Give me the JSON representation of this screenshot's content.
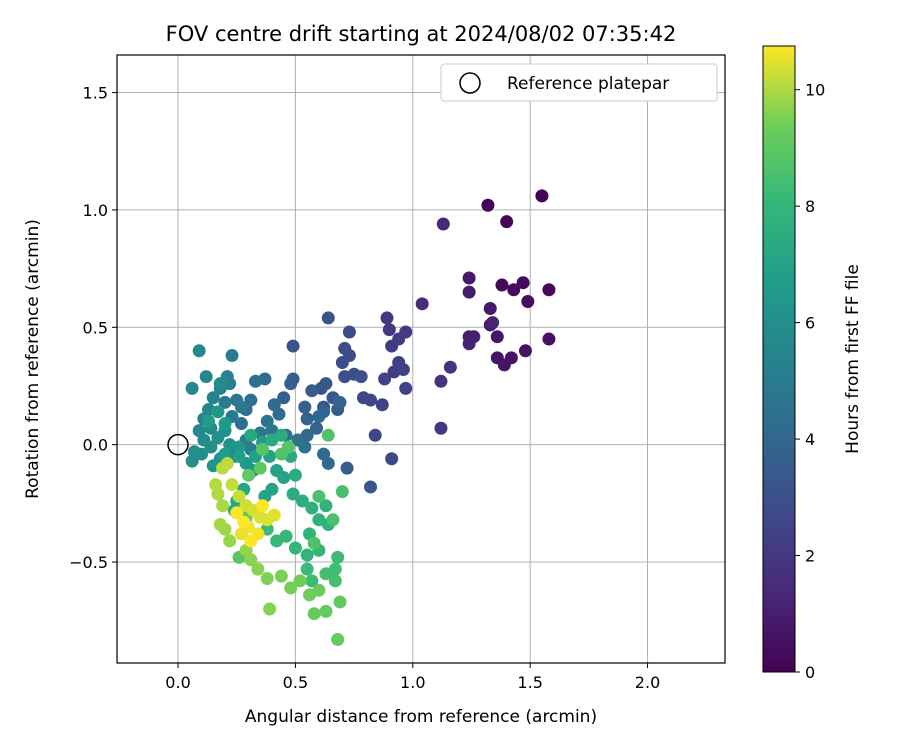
{
  "chart_data": {
    "type": "scatter",
    "title": "FOV centre drift starting at 2024/08/02 07:35:42",
    "xlabel": "Angular distance from reference (arcmin)",
    "ylabel": "Rotation from reference (arcmin)",
    "xlim": [
      -0.26,
      2.33
    ],
    "ylim": [
      -0.93,
      1.66
    ],
    "xticks": [
      0.0,
      0.5,
      1.0,
      1.5,
      2.0
    ],
    "xtick_labels": [
      "0.0",
      "0.5",
      "1.0",
      "1.5",
      "2.0"
    ],
    "yticks": [
      -0.5,
      0.0,
      0.5,
      1.0,
      1.5
    ],
    "ytick_labels": [
      "−0.5",
      "0.0",
      "0.5",
      "1.0",
      "1.5"
    ],
    "grid": true,
    "legend": {
      "position": "top-right",
      "entries": [
        "Reference platepar"
      ]
    },
    "reference_point": {
      "x": 0.0,
      "y": 0.0,
      "label": "Reference platepar"
    },
    "colorbar": {
      "label": "Hours from first FF file",
      "range": [
        0,
        10.75
      ],
      "ticks": [
        0,
        2,
        4,
        6,
        8,
        10
      ],
      "tick_labels": [
        "0",
        "2",
        "4",
        "6",
        "8",
        "10"
      ],
      "colormap": "viridis"
    },
    "points": [
      [
        1.55,
        1.06,
        0.05
      ],
      [
        1.32,
        1.02,
        0.1
      ],
      [
        1.4,
        0.95,
        0.15
      ],
      [
        1.58,
        0.66,
        0.2
      ],
      [
        1.38,
        0.68,
        0.25
      ],
      [
        1.47,
        0.69,
        0.3
      ],
      [
        1.43,
        0.66,
        0.35
      ],
      [
        1.49,
        0.61,
        0.4
      ],
      [
        1.58,
        0.45,
        0.5
      ],
      [
        1.48,
        0.4,
        0.55
      ],
      [
        1.42,
        0.37,
        0.6
      ],
      [
        1.36,
        0.37,
        0.65
      ],
      [
        1.39,
        0.34,
        0.7
      ],
      [
        1.36,
        0.46,
        0.75
      ],
      [
        1.33,
        0.58,
        0.8
      ],
      [
        1.33,
        0.51,
        0.85
      ],
      [
        1.24,
        0.71,
        0.9
      ],
      [
        1.24,
        0.65,
        1.0
      ],
      [
        1.24,
        0.46,
        1.05
      ],
      [
        1.26,
        0.46,
        1.1
      ],
      [
        1.24,
        0.43,
        1.15
      ],
      [
        1.34,
        0.52,
        1.2
      ],
      [
        1.13,
        0.94,
        1.4
      ],
      [
        1.04,
        0.6,
        1.6
      ],
      [
        1.16,
        0.33,
        1.7
      ],
      [
        1.12,
        0.27,
        1.8
      ],
      [
        1.12,
        0.07,
        1.9
      ],
      [
        0.89,
        0.54,
        2.0
      ],
      [
        0.9,
        0.49,
        2.05
      ],
      [
        0.97,
        0.48,
        2.1
      ],
      [
        0.91,
        0.42,
        2.15
      ],
      [
        0.94,
        0.45,
        2.2
      ],
      [
        0.92,
        0.31,
        2.25
      ],
      [
        0.94,
        0.35,
        2.3
      ],
      [
        0.96,
        0.32,
        2.35
      ],
      [
        0.88,
        0.28,
        2.4
      ],
      [
        0.97,
        0.24,
        2.45
      ],
      [
        0.87,
        0.17,
        2.5
      ],
      [
        0.82,
        0.19,
        2.55
      ],
      [
        0.79,
        0.2,
        2.6
      ],
      [
        0.84,
        0.04,
        2.65
      ],
      [
        0.91,
        -0.06,
        2.7
      ],
      [
        0.73,
        0.48,
        2.75
      ],
      [
        0.71,
        0.41,
        2.8
      ],
      [
        0.73,
        0.38,
        2.85
      ],
      [
        0.7,
        0.35,
        2.9
      ],
      [
        0.71,
        0.29,
        2.95
      ],
      [
        0.75,
        0.3,
        3.0
      ],
      [
        0.78,
        0.29,
        3.05
      ],
      [
        0.64,
        0.54,
        3.1
      ],
      [
        0.49,
        0.42,
        3.15
      ],
      [
        0.82,
        -0.18,
        3.2
      ],
      [
        0.61,
        0.24,
        3.25
      ],
      [
        0.63,
        0.26,
        3.3
      ],
      [
        0.66,
        0.2,
        3.35
      ],
      [
        0.62,
        0.16,
        3.4
      ],
      [
        0.57,
        0.23,
        3.45
      ],
      [
        0.68,
        0.15,
        3.5
      ],
      [
        0.72,
        -0.1,
        3.55
      ],
      [
        0.49,
        0.28,
        3.6
      ],
      [
        0.48,
        0.26,
        3.65
      ],
      [
        0.45,
        0.2,
        3.7
      ],
      [
        0.54,
        0.16,
        3.75
      ],
      [
        0.55,
        0.11,
        3.8
      ],
      [
        0.59,
        0.07,
        3.85
      ],
      [
        0.62,
        0.14,
        3.9
      ],
      [
        0.69,
        0.18,
        3.95
      ],
      [
        0.6,
        0.12,
        4.0
      ],
      [
        0.55,
        0.04,
        4.05
      ],
      [
        0.62,
        -0.04,
        4.1
      ],
      [
        0.64,
        -0.08,
        4.15
      ],
      [
        0.41,
        0.17,
        4.2
      ],
      [
        0.43,
        0.13,
        4.25
      ],
      [
        0.37,
        0.28,
        4.3
      ],
      [
        0.33,
        0.27,
        4.35
      ],
      [
        0.31,
        0.19,
        4.4
      ],
      [
        0.29,
        0.15,
        4.45
      ],
      [
        0.27,
        0.09,
        4.5
      ],
      [
        0.46,
        0.04,
        4.55
      ],
      [
        0.51,
        0.02,
        4.6
      ],
      [
        0.54,
        -0.01,
        4.65
      ],
      [
        0.38,
        0.1,
        4.7
      ],
      [
        0.4,
        0.06,
        4.75
      ],
      [
        0.35,
        0.05,
        4.8
      ],
      [
        0.25,
        0.19,
        4.85
      ],
      [
        0.27,
        0.16,
        4.9
      ],
      [
        0.2,
        0.18,
        4.95
      ],
      [
        0.23,
        0.12,
        5.0
      ],
      [
        0.29,
        0.02,
        5.05
      ],
      [
        0.31,
        -0.02,
        5.1
      ],
      [
        0.24,
        -0.05,
        5.15
      ],
      [
        0.23,
        0.38,
        5.2
      ],
      [
        0.22,
        0.26,
        5.25
      ],
      [
        0.21,
        0.29,
        5.3
      ],
      [
        0.18,
        0.24,
        5.35
      ],
      [
        0.15,
        0.2,
        5.4
      ],
      [
        0.13,
        0.15,
        5.45
      ],
      [
        0.11,
        0.11,
        5.5
      ],
      [
        0.09,
        0.06,
        5.55
      ],
      [
        0.06,
        0.24,
        5.6
      ],
      [
        0.09,
        0.4,
        5.65
      ],
      [
        0.12,
        0.29,
        5.7
      ],
      [
        0.18,
        0.26,
        5.75
      ],
      [
        0.14,
        0.07,
        5.8
      ],
      [
        0.11,
        0.02,
        5.85
      ],
      [
        0.07,
        -0.03,
        5.9
      ],
      [
        0.06,
        -0.07,
        5.95
      ],
      [
        0.1,
        -0.04,
        6.0
      ],
      [
        0.14,
        -0.01,
        6.05
      ],
      [
        0.17,
        0.03,
        6.1
      ],
      [
        0.2,
        0.06,
        6.15
      ],
      [
        0.22,
        0.0,
        6.2
      ],
      [
        0.18,
        -0.06,
        6.25
      ],
      [
        0.15,
        -0.09,
        6.3
      ],
      [
        0.17,
        0.14,
        6.35
      ],
      [
        0.26,
        -0.01,
        6.4
      ],
      [
        0.29,
        -0.08,
        6.45
      ],
      [
        0.32,
        -0.11,
        6.5
      ],
      [
        0.2,
        0.09,
        6.55
      ],
      [
        0.13,
        0.1,
        6.6
      ],
      [
        0.2,
        -0.04,
        6.7
      ],
      [
        0.26,
        -0.05,
        6.75
      ],
      [
        0.33,
        -0.05,
        6.8
      ],
      [
        0.36,
        0.01,
        6.85
      ],
      [
        0.39,
        -0.05,
        6.9
      ],
      [
        0.42,
        -0.11,
        6.95
      ],
      [
        0.45,
        -0.14,
        7.0
      ],
      [
        0.4,
        -0.19,
        7.05
      ],
      [
        0.37,
        -0.22,
        7.1
      ],
      [
        0.28,
        -0.19,
        7.15
      ],
      [
        0.25,
        -0.24,
        7.2
      ],
      [
        0.24,
        -0.28,
        7.25
      ],
      [
        0.31,
        0.04,
        7.3
      ],
      [
        0.4,
        0.02,
        7.35
      ],
      [
        0.44,
        0.04,
        7.4
      ],
      [
        0.48,
        -0.05,
        7.45
      ],
      [
        0.5,
        -0.13,
        7.5
      ],
      [
        0.49,
        -0.21,
        7.55
      ],
      [
        0.53,
        -0.24,
        7.6
      ],
      [
        0.57,
        -0.27,
        7.65
      ],
      [
        0.6,
        -0.32,
        7.7
      ],
      [
        0.63,
        -0.26,
        7.75
      ],
      [
        0.64,
        -0.34,
        7.8
      ],
      [
        0.56,
        -0.38,
        7.85
      ],
      [
        0.6,
        -0.45,
        7.9
      ],
      [
        0.55,
        -0.47,
        7.95
      ],
      [
        0.5,
        -0.44,
        8.0
      ],
      [
        0.46,
        -0.39,
        8.05
      ],
      [
        0.42,
        -0.41,
        8.1
      ],
      [
        0.38,
        -0.36,
        8.15
      ],
      [
        0.55,
        -0.53,
        8.2
      ],
      [
        0.57,
        -0.58,
        8.25
      ],
      [
        0.68,
        -0.48,
        8.3
      ],
      [
        0.67,
        -0.53,
        8.35
      ],
      [
        0.63,
        -0.55,
        8.4
      ],
      [
        0.67,
        -0.58,
        8.45
      ],
      [
        0.7,
        -0.2,
        8.5
      ],
      [
        0.66,
        -0.32,
        8.55
      ],
      [
        0.6,
        -0.22,
        8.6
      ],
      [
        0.58,
        -0.42,
        8.65
      ],
      [
        0.64,
        0.04,
        8.7
      ],
      [
        0.44,
        -0.04,
        8.75
      ],
      [
        0.47,
        -0.01,
        8.8
      ],
      [
        0.36,
        -0.02,
        8.85
      ],
      [
        0.26,
        -0.48,
        8.9
      ],
      [
        0.29,
        -0.31,
        8.95
      ],
      [
        0.35,
        -0.1,
        9.0
      ],
      [
        0.3,
        -0.13,
        9.05
      ],
      [
        0.69,
        -0.67,
        9.1
      ],
      [
        0.63,
        -0.71,
        9.15
      ],
      [
        0.58,
        -0.72,
        9.2
      ],
      [
        0.68,
        -0.83,
        9.25
      ],
      [
        0.6,
        -0.62,
        9.3
      ],
      [
        0.56,
        -0.64,
        9.35
      ],
      [
        0.52,
        -0.58,
        9.4
      ],
      [
        0.48,
        -0.61,
        9.45
      ],
      [
        0.44,
        -0.56,
        9.5
      ],
      [
        0.38,
        -0.57,
        9.55
      ],
      [
        0.39,
        -0.7,
        9.6
      ],
      [
        0.34,
        -0.53,
        9.65
      ],
      [
        0.31,
        -0.49,
        9.7
      ],
      [
        0.29,
        -0.45,
        9.75
      ],
      [
        0.22,
        -0.41,
        9.8
      ],
      [
        0.2,
        -0.36,
        9.85
      ],
      [
        0.18,
        -0.34,
        9.9
      ],
      [
        0.19,
        -0.26,
        9.95
      ],
      [
        0.17,
        -0.21,
        10.0
      ],
      [
        0.16,
        -0.17,
        10.05
      ],
      [
        0.19,
        -0.1,
        10.1
      ],
      [
        0.21,
        -0.08,
        10.15
      ],
      [
        0.23,
        -0.17,
        10.2
      ],
      [
        0.26,
        -0.22,
        10.25
      ],
      [
        0.29,
        -0.26,
        10.3
      ],
      [
        0.32,
        -0.28,
        10.35
      ],
      [
        0.35,
        -0.31,
        10.4
      ],
      [
        0.38,
        -0.32,
        10.45
      ],
      [
        0.41,
        -0.3,
        10.5
      ],
      [
        0.27,
        -0.38,
        10.55
      ],
      [
        0.3,
        -0.35,
        10.6
      ],
      [
        0.34,
        -0.38,
        10.65
      ],
      [
        0.31,
        -0.41,
        10.7
      ],
      [
        0.25,
        -0.29,
        10.72
      ],
      [
        0.36,
        -0.26,
        10.74
      ],
      [
        0.28,
        -0.33,
        10.75
      ]
    ]
  }
}
